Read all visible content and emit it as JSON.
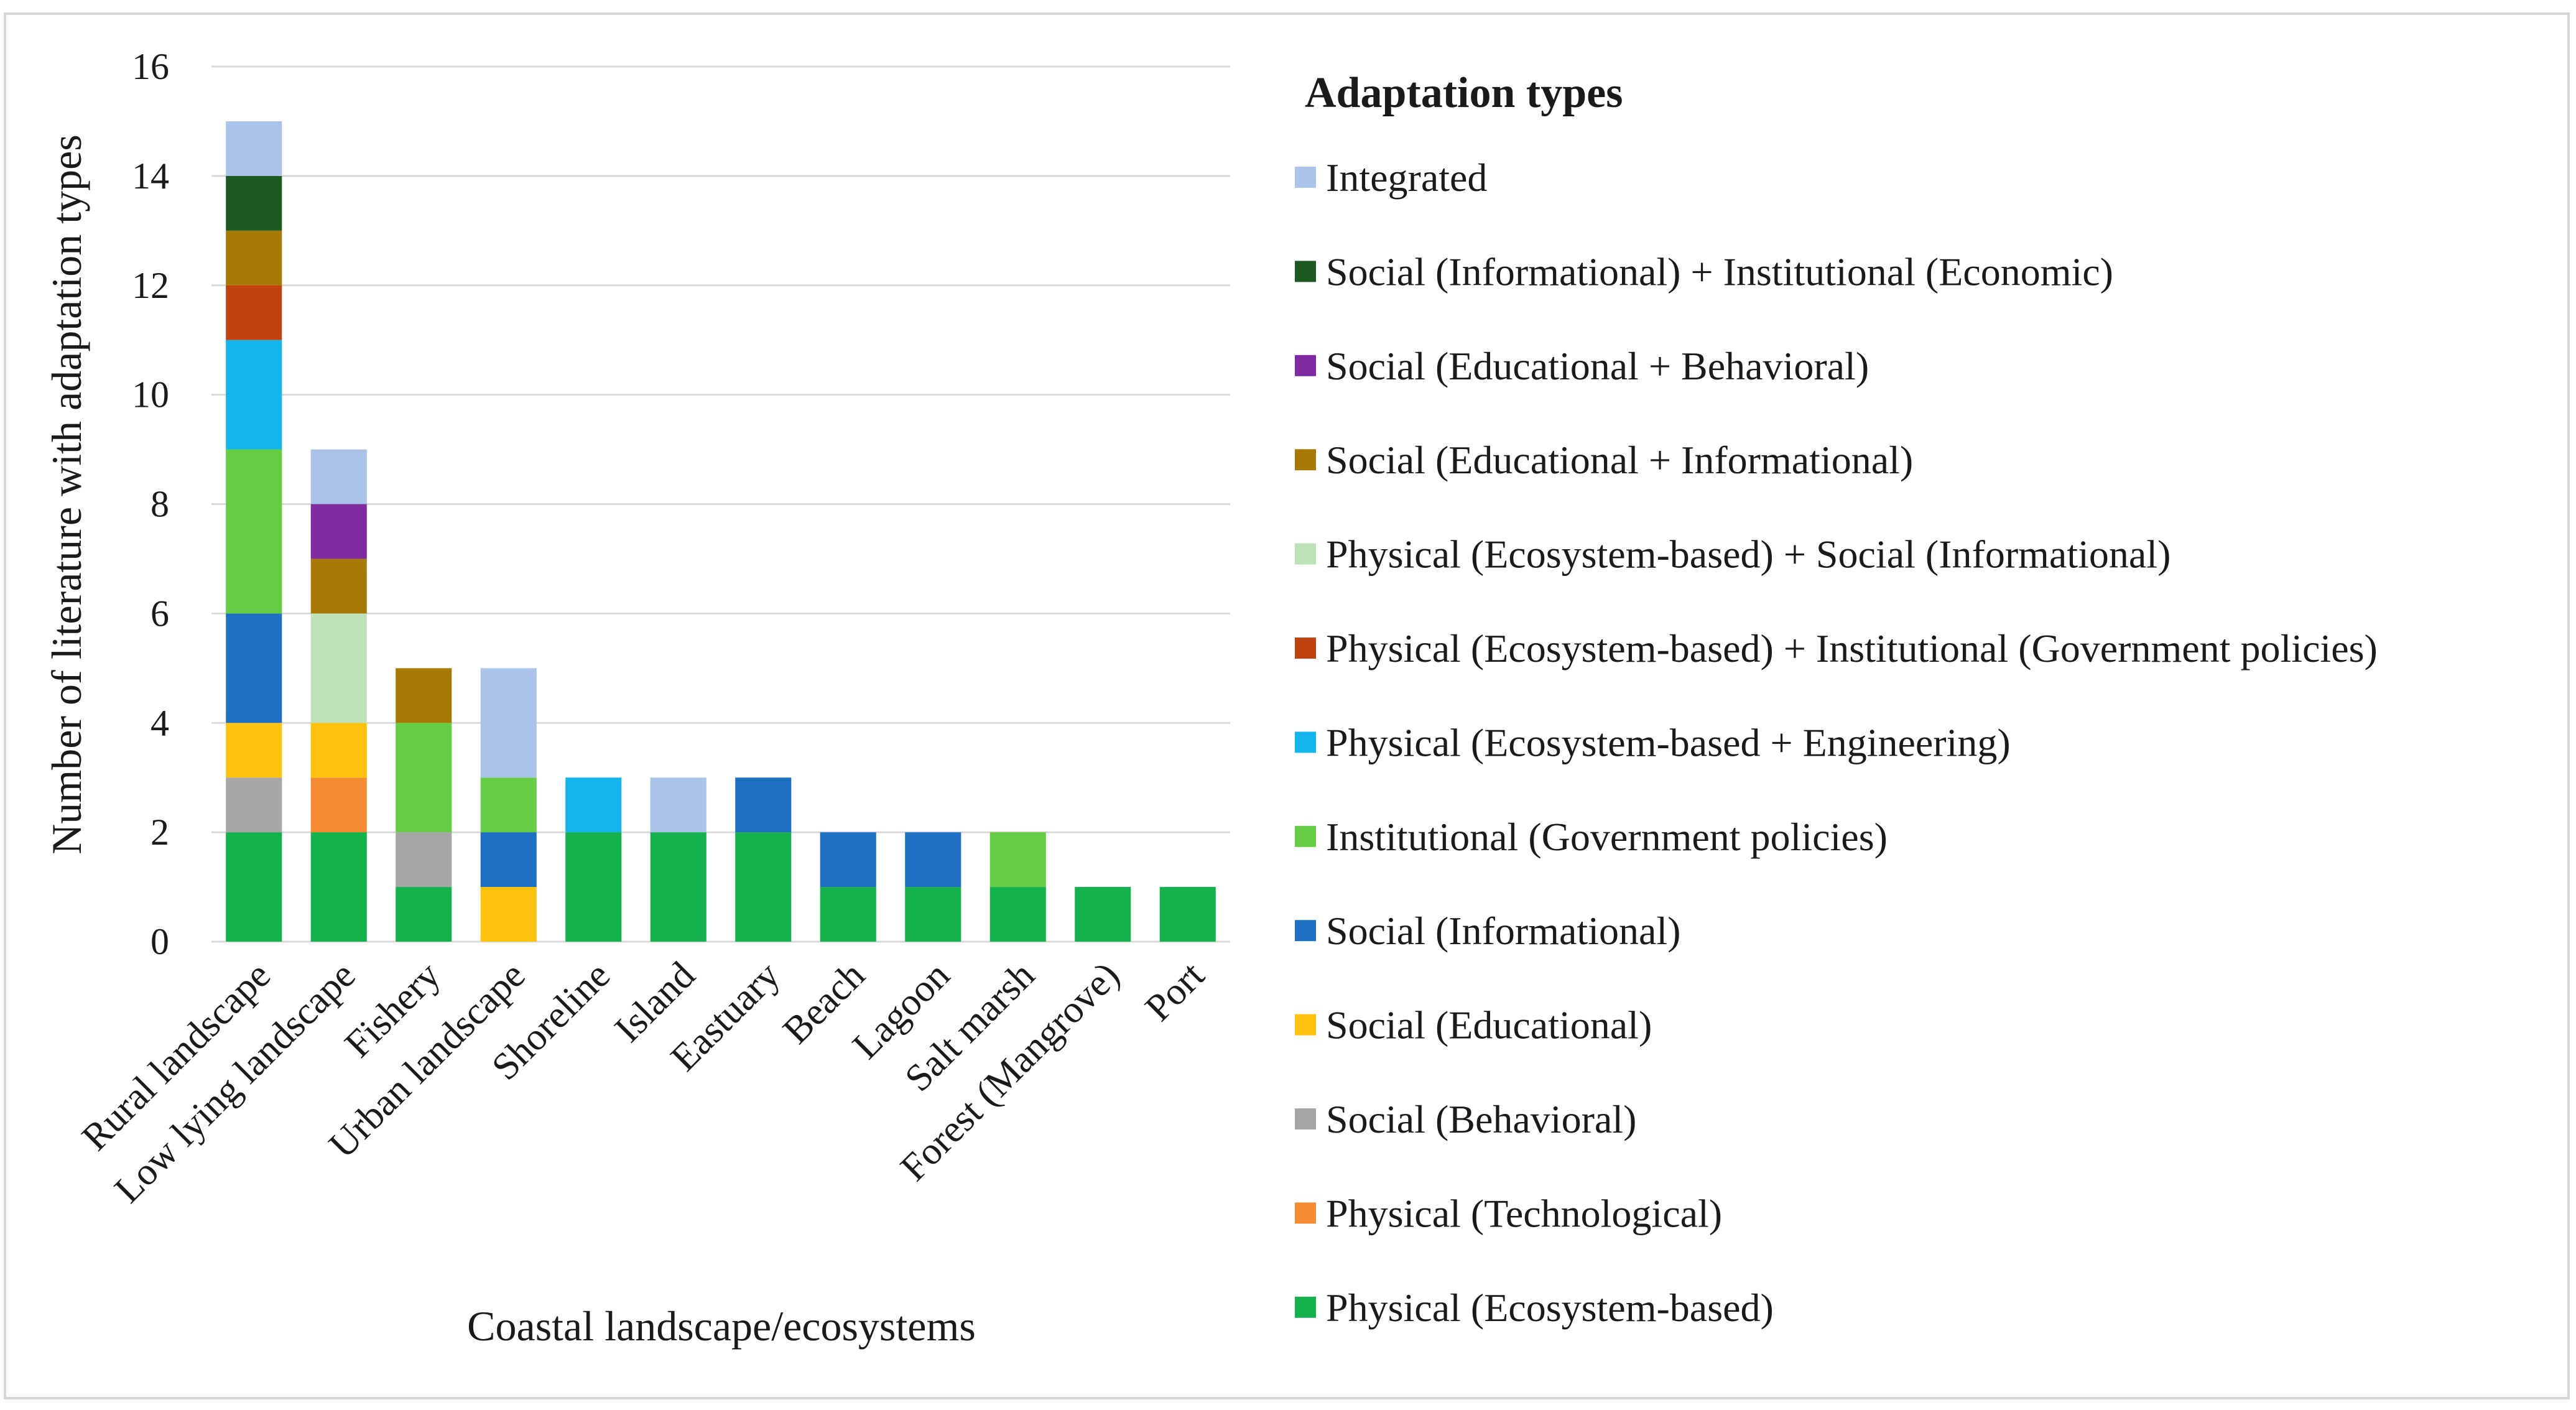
{
  "chart_data": {
    "type": "bar",
    "stacked": true,
    "title": "",
    "xlabel": "Coastal landscape/ecosystems",
    "ylabel": "Number of literature with adaptation types",
    "ylim": [
      0,
      16
    ],
    "yticks": [
      0,
      2,
      4,
      6,
      8,
      10,
      12,
      14,
      16
    ],
    "grid": true,
    "legend_title": "Adaptation types",
    "legend_position": "right",
    "categories": [
      "Rural landscape",
      "Low lying landscape",
      "Fishery",
      "Urban landscape",
      "Shoreline",
      "Island",
      "Eastuary",
      "Beach",
      "Lagoon",
      "Salt marsh",
      "Forest (Mangrove)",
      "Port"
    ],
    "series": [
      {
        "name": "Physical (Ecosystem-based)",
        "color": "#15b14d",
        "values": [
          2,
          2,
          1,
          0,
          2,
          2,
          2,
          1,
          1,
          1,
          1,
          1
        ]
      },
      {
        "name": "Physical (Technological)",
        "color": "#f58a32",
        "values": [
          0,
          1,
          0,
          0,
          0,
          0,
          0,
          0,
          0,
          0,
          0,
          0
        ]
      },
      {
        "name": "Social (Behavioral)",
        "color": "#a6a6a6",
        "values": [
          1,
          0,
          1,
          0,
          0,
          0,
          0,
          0,
          0,
          0,
          0,
          0
        ]
      },
      {
        "name": "Social (Educational)",
        "color": "#ffc20e",
        "values": [
          1,
          1,
          0,
          1,
          0,
          0,
          0,
          0,
          0,
          0,
          0,
          0
        ]
      },
      {
        "name": "Social (Informational)",
        "color": "#1f6fc5",
        "values": [
          2,
          0,
          0,
          1,
          0,
          0,
          1,
          1,
          1,
          0,
          0,
          0
        ]
      },
      {
        "name": "Institutional (Government policies)",
        "color": "#66cc44",
        "values": [
          3,
          0,
          2,
          1,
          0,
          0,
          0,
          0,
          0,
          1,
          0,
          0
        ]
      },
      {
        "name": "Physical (Ecosystem-based + Engineering)",
        "color": "#13b5ea",
        "values": [
          2,
          0,
          0,
          0,
          1,
          0,
          0,
          0,
          0,
          0,
          0,
          0
        ]
      },
      {
        "name": "Physical (Ecosystem-based) + Institutional (Government policies)",
        "color": "#c0430f",
        "values": [
          1,
          0,
          0,
          0,
          0,
          0,
          0,
          0,
          0,
          0,
          0,
          0
        ]
      },
      {
        "name": "Physical (Ecosystem-based) + Social (Informational)",
        "color": "#bde2b9",
        "values": [
          0,
          2,
          0,
          0,
          0,
          0,
          0,
          0,
          0,
          0,
          0,
          0
        ]
      },
      {
        "name": "Social (Educational + Informational)",
        "color": "#a67a05",
        "values": [
          1,
          1,
          1,
          0,
          0,
          0,
          0,
          0,
          0,
          0,
          0,
          0
        ]
      },
      {
        "name": "Social (Educational + Behavioral)",
        "color": "#7f2aa0",
        "values": [
          0,
          1,
          0,
          0,
          0,
          0,
          0,
          0,
          0,
          0,
          0,
          0
        ]
      },
      {
        "name": "Social (Informational) + Institutional (Economic)",
        "color": "#1d5a22",
        "values": [
          1,
          0,
          0,
          0,
          0,
          0,
          0,
          0,
          0,
          0,
          0,
          0
        ]
      },
      {
        "name": "Integrated",
        "color": "#a9c4e8",
        "values": [
          1,
          1,
          0,
          2,
          0,
          1,
          0,
          0,
          0,
          0,
          0,
          0
        ]
      }
    ]
  }
}
